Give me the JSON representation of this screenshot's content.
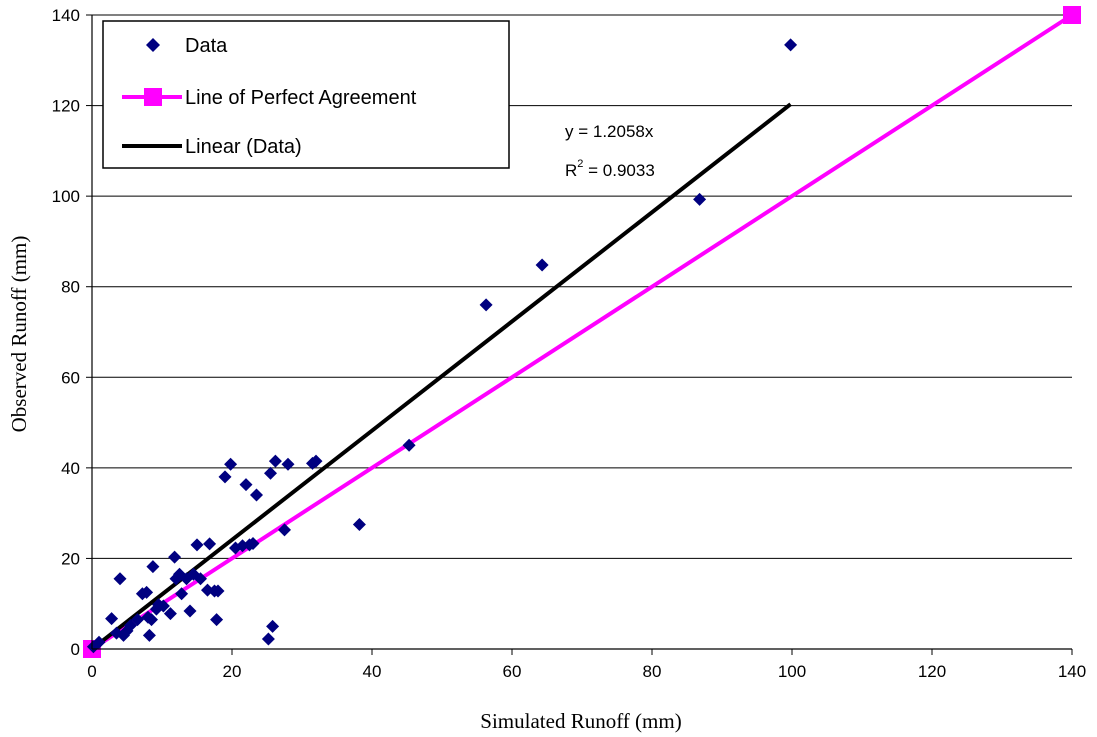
{
  "chart_data": {
    "type": "scatter",
    "xlabel": "Simulated Runoff (mm)",
    "ylabel": "Observed Runoff (mm)",
    "xlim": [
      0,
      140
    ],
    "ylim": [
      0,
      140
    ],
    "x_ticks": [
      "0",
      "20",
      "40",
      "60",
      "80",
      "100",
      "120",
      "140"
    ],
    "y_ticks": [
      "0",
      "20",
      "40",
      "60",
      "80",
      "100",
      "120",
      "140"
    ],
    "grid": "horizontal",
    "legend_position": "top-left",
    "series": [
      {
        "name": "Data",
        "kind": "scatter",
        "marker": "diamond",
        "color": "#000080",
        "points": [
          [
            0.2,
            0.5
          ],
          [
            1.0,
            1.5
          ],
          [
            2.8,
            6.7
          ],
          [
            3.5,
            3.5
          ],
          [
            4.0,
            15.5
          ],
          [
            4.5,
            3.0
          ],
          [
            5.0,
            4.0
          ],
          [
            5.5,
            5.2
          ],
          [
            6.5,
            6.5
          ],
          [
            7.2,
            12.2
          ],
          [
            7.8,
            12.5
          ],
          [
            8.0,
            7.0
          ],
          [
            8.2,
            3.0
          ],
          [
            8.5,
            6.5
          ],
          [
            8.7,
            18.2
          ],
          [
            9.2,
            8.8
          ],
          [
            9.5,
            9.8
          ],
          [
            10.2,
            9.5
          ],
          [
            11.2,
            7.8
          ],
          [
            11.8,
            20.3
          ],
          [
            12.0,
            15.5
          ],
          [
            12.5,
            16.5
          ],
          [
            12.8,
            12.2
          ],
          [
            13.5,
            15.5
          ],
          [
            14.0,
            8.4
          ],
          [
            14.5,
            16.5
          ],
          [
            15.0,
            23.0
          ],
          [
            15.5,
            15.5
          ],
          [
            16.5,
            13.0
          ],
          [
            16.8,
            23.2
          ],
          [
            17.5,
            12.8
          ],
          [
            17.8,
            6.5
          ],
          [
            18.0,
            12.8
          ],
          [
            19.0,
            38.0
          ],
          [
            19.8,
            40.8
          ],
          [
            20.5,
            22.3
          ],
          [
            21.5,
            22.8
          ],
          [
            22.0,
            36.3
          ],
          [
            22.5,
            23.0
          ],
          [
            23.0,
            23.3
          ],
          [
            23.5,
            34.0
          ],
          [
            25.2,
            2.2
          ],
          [
            25.5,
            38.8
          ],
          [
            25.8,
            5.0
          ],
          [
            26.2,
            41.5
          ],
          [
            27.5,
            26.3
          ],
          [
            28.0,
            40.8
          ],
          [
            31.5,
            41.0
          ],
          [
            32.0,
            41.5
          ],
          [
            38.2,
            27.5
          ],
          [
            45.3,
            45.0
          ],
          [
            56.3,
            76.0
          ],
          [
            64.3,
            84.8
          ],
          [
            86.8,
            99.3
          ],
          [
            99.8,
            133.4
          ]
        ]
      },
      {
        "name": "Line of Perfect Agreement",
        "kind": "line",
        "marker": "square",
        "color": "#ff00ff",
        "points": [
          [
            0,
            0
          ],
          [
            140,
            140
          ]
        ]
      },
      {
        "name": "Linear (Data)",
        "kind": "line",
        "color": "#000000",
        "points": [
          [
            0,
            0
          ],
          [
            99.8,
            120.3
          ]
        ]
      }
    ],
    "annotations": [
      "y = 1.2058x",
      "R",
      "2",
      " = 0.9033"
    ]
  }
}
